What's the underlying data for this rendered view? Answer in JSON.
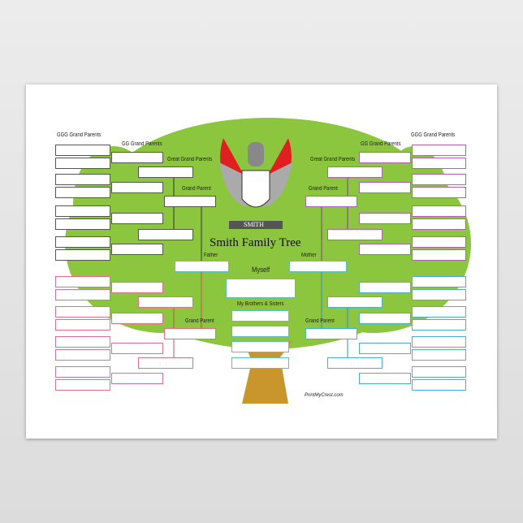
{
  "title": "Smith Family Tree",
  "crest_banner": "SMITH",
  "credit": "PrintMyCrest.com",
  "labels": {
    "ggg_left": "GGG Grand Parents",
    "ggg_right": "GGG Grand Parents",
    "gg_left": "GG Grand Parents",
    "gg_right": "GG Grand Parents",
    "great_left": "Great Grand Parents",
    "great_right": "Great Grand Parents",
    "gp_top_left": "Grand Parent",
    "gp_top_right": "Grand Parent",
    "gp_bottom_left": "Grand  Parent",
    "gp_bottom_right": "Grand  Parent",
    "father": "Father",
    "mother": "Mother",
    "myself": "Myself",
    "siblings": "My Brothers & Sisters"
  },
  "colors": {
    "tree_green": "#8cc63f",
    "trunk": "#c9962e",
    "paternal_father_side": "#555555",
    "paternal_mother_side": "#e0708a",
    "maternal_father_side": "#b060b0",
    "maternal_mother_side": "#4aaed0",
    "parents": "#5bbfc0"
  }
}
